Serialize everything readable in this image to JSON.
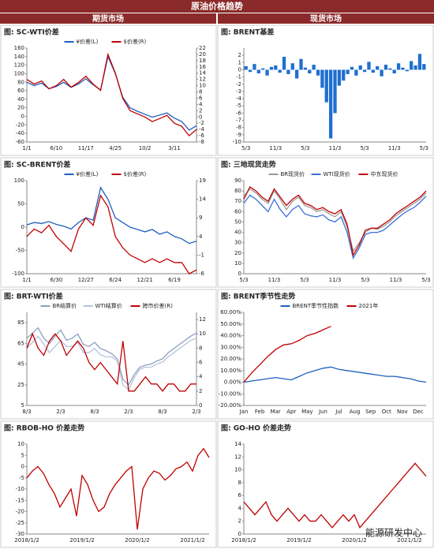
{
  "header": {
    "title": "原油价格趋势",
    "left": "期货市场",
    "right": "现货市场"
  },
  "watermark": "能源研发中心",
  "chart_data": [
    {
      "type": "line",
      "title": "图: SC-WTI价差",
      "legend": "top",
      "categories": [
        "1/1",
        null,
        null,
        null,
        "6/10",
        null,
        null,
        null,
        "11/17",
        null,
        null,
        null,
        "4/25",
        null,
        null,
        null,
        "10/2",
        null,
        null,
        null,
        "3/11",
        null,
        null,
        null
      ],
      "series": [
        {
          "name": "¥价差(L)",
          "color": "#1f5fbf",
          "values": [
            80,
            72,
            78,
            65,
            70,
            80,
            68,
            76,
            88,
            74,
            62,
            140,
            100,
            45,
            20,
            12,
            5,
            -2,
            3,
            8,
            -4,
            -12,
            -32,
            -22
          ]
        },
        {
          "name": "$价差(R)",
          "color": "#c00000",
          "axis": "y2",
          "values": [
            12,
            10.5,
            11.5,
            9,
            10,
            12,
            9.5,
            11,
            13,
            10.5,
            8.5,
            20,
            14,
            6,
            2,
            1,
            0,
            -1.5,
            -0.5,
            0.5,
            -2,
            -3,
            -6,
            -4
          ]
        }
      ],
      "ylim": [
        -60,
        160
      ],
      "yticks": [
        -60,
        -40,
        -20,
        0,
        20,
        40,
        60,
        80,
        100,
        120,
        140,
        160
      ],
      "y2lim": [
        -8,
        22
      ],
      "y2ticks": [
        -8,
        -6,
        -4,
        -2,
        0,
        2,
        4,
        6,
        8,
        10,
        12,
        14,
        16,
        18,
        20,
        22
      ]
    },
    {
      "type": "bar",
      "title": "图: BRENT基差",
      "color": "#1f6fd0",
      "categories": [
        "5/3",
        null,
        null,
        null,
        null,
        null,
        null,
        "11/3",
        null,
        null,
        null,
        null,
        null,
        null,
        "5/3",
        null,
        null,
        null,
        null,
        null,
        null,
        "11/3",
        null,
        null,
        null,
        null,
        null,
        null,
        "5/3",
        null,
        null,
        null,
        null,
        null,
        null,
        "11/3",
        null,
        null,
        null,
        null,
        null,
        null,
        "5/3"
      ],
      "values": [
        0.5,
        -0.3,
        0.8,
        -0.5,
        0.2,
        -0.8,
        0.4,
        0.6,
        -0.4,
        1.8,
        -0.6,
        0.9,
        -1.2,
        1.5,
        0.3,
        -0.5,
        0.7,
        -0.8,
        -2.5,
        -4.5,
        -9.5,
        -6,
        -2.2,
        -1.5,
        -0.6,
        0.4,
        -0.8,
        0.6,
        -0.3,
        1.1,
        -0.4,
        0.5,
        -0.9,
        0.7,
        0.2,
        -0.5,
        0.9,
        0.3,
        -0.2,
        1.2,
        0.6,
        2.2,
        0.8
      ],
      "ylim": [
        -10,
        3
      ],
      "yticks": [
        -10,
        -9,
        -8,
        -7,
        -6,
        -5,
        -4,
        -3,
        -2,
        -1,
        0,
        1,
        2
      ]
    },
    {
      "type": "line",
      "title": "图: SC-BRENT价差",
      "legend": "top",
      "categories": [
        "1/1",
        null,
        null,
        null,
        "6/30",
        null,
        null,
        null,
        "12/27",
        null,
        null,
        null,
        "6/24",
        null,
        null,
        null,
        "12/21",
        null,
        null,
        null,
        "6/19",
        null,
        null,
        null
      ],
      "series": [
        {
          "name": "¥价差(L)",
          "color": "#1f5fbf",
          "values": [
            5,
            10,
            8,
            12,
            6,
            2,
            -4,
            10,
            20,
            15,
            85,
            60,
            20,
            10,
            0,
            -5,
            -10,
            -5,
            -15,
            -10,
            -20,
            -25,
            -35,
            -30
          ]
        },
        {
          "name": "$价差(R)",
          "color": "#c00000",
          "axis": "y2",
          "values": [
            4,
            6,
            5,
            7,
            4,
            2,
            0,
            6,
            9,
            7,
            15,
            12,
            4,
            1,
            -1,
            -2,
            -3,
            -2,
            -3,
            -2,
            -3,
            -3,
            -6,
            -5
          ]
        }
      ],
      "ylim": [
        -100,
        100
      ],
      "yticks": [
        -100,
        -50,
        0,
        50,
        100
      ],
      "y2lim": [
        -6,
        19
      ],
      "y2ticks": [
        -6,
        -1,
        4,
        9,
        14,
        19
      ]
    },
    {
      "type": "line",
      "title": "图: 三地现货走势",
      "legend": "top",
      "categories": [
        "5/3",
        null,
        null,
        null,
        null,
        "11/3",
        null,
        null,
        null,
        null,
        "5/3",
        null,
        null,
        null,
        null,
        "11/3",
        null,
        null,
        null,
        null,
        "5/3",
        null,
        null,
        null,
        null,
        "11/3",
        null,
        null,
        null,
        null,
        "5/3"
      ],
      "series": [
        {
          "name": "BR现货价",
          "color": "#9a9a9a",
          "values": [
            75,
            82,
            78,
            72,
            68,
            80,
            72,
            62,
            70,
            74,
            66,
            64,
            60,
            62,
            58,
            55,
            60,
            45,
            22,
            30,
            40,
            44,
            43,
            46,
            50,
            56,
            60,
            64,
            68,
            72,
            78
          ]
        },
        {
          "name": "WTI现货价",
          "color": "#3a6fd8",
          "values": [
            68,
            76,
            72,
            66,
            60,
            72,
            62,
            55,
            62,
            66,
            58,
            56,
            55,
            57,
            52,
            50,
            55,
            40,
            15,
            25,
            38,
            40,
            40,
            42,
            47,
            52,
            57,
            61,
            64,
            69,
            75
          ]
        },
        {
          "name": "中东现货价",
          "color": "#c00000",
          "values": [
            72,
            84,
            80,
            74,
            70,
            82,
            74,
            66,
            72,
            76,
            68,
            66,
            62,
            64,
            60,
            58,
            62,
            48,
            18,
            28,
            42,
            44,
            44,
            48,
            52,
            58,
            62,
            66,
            70,
            74,
            80
          ]
        }
      ],
      "ylim": [
        0,
        90
      ],
      "yticks": [
        0,
        10,
        20,
        30,
        40,
        50,
        60,
        70,
        80,
        90
      ]
    },
    {
      "type": "line",
      "title": "图: BRT-WTI价差",
      "legend": "top",
      "categories": [
        "8/3",
        null,
        null,
        null,
        null,
        null,
        "2/3",
        null,
        null,
        null,
        null,
        null,
        "8/3",
        null,
        null,
        null,
        null,
        null,
        "2/3",
        null,
        null,
        null,
        null,
        null,
        "8/3",
        null,
        null,
        null,
        null,
        null,
        "2/3"
      ],
      "series": [
        {
          "name": "BR结算价",
          "color": "#8aa0c0",
          "values": [
            70,
            75,
            80,
            70,
            65,
            72,
            78,
            68,
            70,
            74,
            64,
            62,
            66,
            60,
            58,
            55,
            50,
            30,
            25,
            35,
            42,
            44,
            45,
            48,
            50,
            56,
            60,
            64,
            68,
            72,
            75
          ]
        },
        {
          "name": "WTI结算价",
          "color": "#b4c4dc",
          "values": [
            60,
            66,
            72,
            64,
            56,
            62,
            68,
            62,
            62,
            66,
            56,
            56,
            60,
            54,
            52,
            52,
            48,
            25,
            20,
            32,
            40,
            42,
            42,
            45,
            47,
            52,
            56,
            60,
            64,
            68,
            70
          ]
        },
        {
          "name": "跨市价差(R)",
          "color": "#c00000",
          "axis": "y2",
          "values": [
            8,
            10,
            8,
            7,
            9,
            10,
            9,
            7,
            8,
            9,
            8,
            6,
            5,
            6,
            5,
            4,
            3,
            9,
            2,
            2,
            3,
            4,
            3,
            3,
            2,
            3,
            3,
            2,
            2,
            3,
            3
          ]
        }
      ],
      "ylim": [
        5,
        95
      ],
      "yticks": [
        5,
        25,
        45,
        65,
        85
      ],
      "y2lim": [
        0,
        13
      ],
      "y2ticks": [
        0,
        2,
        4,
        6,
        8,
        10,
        12
      ]
    },
    {
      "type": "line",
      "title": "图: BRENT季节性走势",
      "legend": "top",
      "categories": [
        "Jan",
        null,
        "Feb",
        null,
        "Mar",
        null,
        "Apr",
        null,
        "May",
        null,
        "Jun",
        null,
        "Jul",
        null,
        "Aug",
        null,
        "Sep",
        null,
        "Oct",
        null,
        "Nov",
        null,
        "Dec",
        null
      ],
      "series": [
        {
          "name": "BRENT季节性指数",
          "color": "#1f5fbf",
          "values": [
            0,
            1,
            2,
            3,
            4,
            3,
            2,
            5,
            8,
            10,
            12,
            13,
            11,
            10,
            9,
            8,
            7,
            6,
            5,
            5,
            4,
            3,
            1,
            0
          ]
        },
        {
          "name": "2021年",
          "color": "#c00000",
          "values": [
            0,
            8,
            15,
            22,
            28,
            32,
            33,
            36,
            40,
            42,
            45,
            48,
            null,
            null,
            null,
            null,
            null,
            null,
            null,
            null,
            null,
            null,
            null,
            null
          ]
        }
      ],
      "ylim": [
        -20,
        60
      ],
      "yticks": [
        {
          "value": -20,
          "label": "-20.00%"
        },
        {
          "value": -10,
          "label": "-10.00%"
        },
        {
          "value": 0,
          "label": "0.00%"
        },
        {
          "value": 10,
          "label": "10.00%"
        },
        {
          "value": 20,
          "label": "20.00%"
        },
        {
          "value": 30,
          "label": "30.00%"
        },
        {
          "value": 40,
          "label": "40.00%"
        },
        {
          "value": 50,
          "label": "50.00%"
        },
        {
          "value": 60,
          "label": "60.00%"
        }
      ]
    },
    {
      "type": "line",
      "title": "图: RBOB-HO 价差走势",
      "color": "#c00000",
      "categories": [
        "2018/1/2",
        null,
        null,
        null,
        null,
        null,
        null,
        null,
        null,
        null,
        "2019/1/2",
        null,
        null,
        null,
        null,
        null,
        null,
        null,
        null,
        null,
        "2020/1/2",
        null,
        null,
        null,
        null,
        null,
        null,
        null,
        null,
        null,
        "2021/1/2",
        null,
        null,
        null
      ],
      "values": [
        -5,
        -2,
        0,
        -3,
        -8,
        -12,
        -18,
        -14,
        -10,
        -22,
        -4,
        -8,
        -15,
        -20,
        -18,
        -12,
        -8,
        -5,
        -2,
        0,
        -28,
        -10,
        -5,
        -2,
        -3,
        -6,
        -4,
        -1,
        0,
        2,
        -2,
        5,
        8,
        4
      ],
      "ylim": [
        -30,
        10
      ],
      "yticks": [
        -30,
        -25,
        -20,
        -15,
        -10,
        -5,
        0,
        5,
        10
      ]
    },
    {
      "type": "line",
      "title": "图: GO-HO 价差走势",
      "color": "#c00000",
      "categories": [
        "2018/1/2",
        null,
        null,
        null,
        null,
        null,
        null,
        null,
        null,
        null,
        "2019/1/2",
        null,
        null,
        null,
        null,
        null,
        null,
        null,
        null,
        null,
        "2020/1/2",
        null,
        null,
        null,
        null,
        null,
        null,
        null,
        null,
        null,
        "2021/1/2",
        null,
        null,
        null
      ],
      "values": [
        5,
        4,
        3,
        4,
        5,
        3,
        2,
        3,
        4,
        3,
        2,
        3,
        2,
        2,
        3,
        2,
        1,
        2,
        3,
        2,
        3,
        1,
        2,
        3,
        4,
        5,
        6,
        7,
        8,
        9,
        10,
        11,
        10,
        9
      ],
      "ylim": [
        0,
        14
      ],
      "yticks": [
        0,
        2,
        4,
        6,
        8,
        10,
        12,
        14
      ]
    }
  ]
}
